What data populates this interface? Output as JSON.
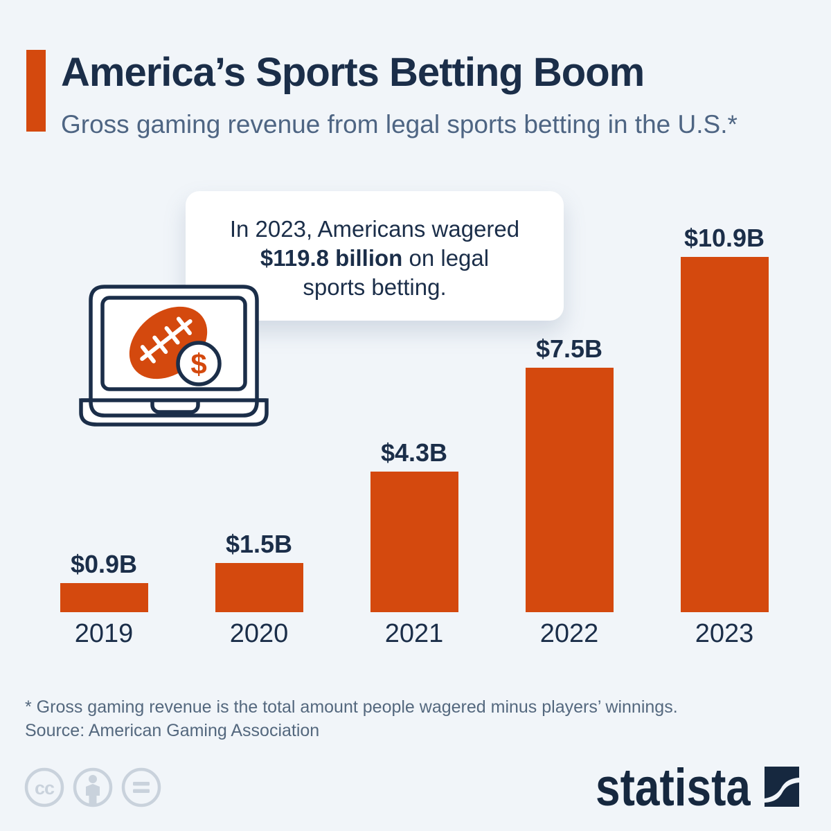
{
  "page": {
    "background": "#f1f5f9"
  },
  "header": {
    "title": "America’s Sports Betting Boom",
    "subtitle": "Gross gaming revenue from legal sports betting in the U.S.*",
    "accent_color": "#d4490e",
    "title_color": "#1b2e49",
    "subtitle_color": "#4e6583"
  },
  "callout": {
    "line1": "In 2023, Americans wagered",
    "amount": "$119.8 billion",
    "line2_rest": " on legal",
    "line3": "sports betting."
  },
  "laptop_icon": {
    "dollar_sign": "$",
    "football_color": "#d4490e",
    "outline_color": "#1b2e49"
  },
  "chart_data": {
    "type": "bar",
    "title": "Gross gaming revenue from legal sports betting in the U.S.",
    "categories": [
      "2019",
      "2020",
      "2021",
      "2022",
      "2023"
    ],
    "values": [
      0.9,
      1.5,
      4.3,
      7.5,
      10.9
    ],
    "labels": [
      "$0.9B",
      "$1.5B",
      "$4.3B",
      "$7.5B",
      "$10.9B"
    ],
    "unit": "billion U.S. dollars",
    "bar_color": "#d4490e",
    "label_color": "#1b2e49",
    "ylim": [
      0,
      11.5
    ],
    "grid": false,
    "legend": "none"
  },
  "footer": {
    "footnote": "* Gross gaming revenue is the total amount people wagered minus players’ winnings.",
    "source": "Source: American Gaming Association"
  },
  "branding": {
    "logo_text": "statista",
    "logo_color": "#16283f",
    "license_cc_label": "cc",
    "license_icon_color": "#c9d2dc"
  }
}
